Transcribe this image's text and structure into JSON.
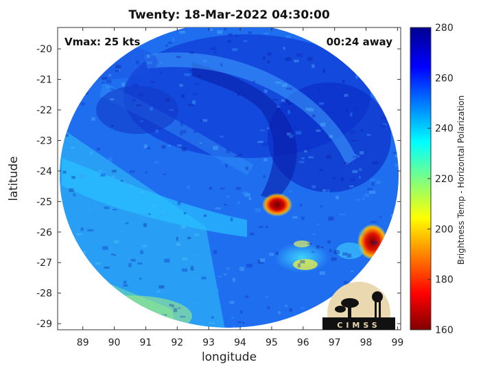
{
  "title": "Twenty: 18-Mar-2022 04:30:00",
  "vmax_label": "Vmax: 25 kts",
  "time_offset_label": "00:24 away",
  "xlabel": "longitude",
  "ylabel": "latitude",
  "colorbar_label": "Brightness Temp - Horizontal Polarization",
  "logo_text": "CIMSS",
  "chart_data": {
    "type": "heatmap",
    "x_ticks": [
      "89",
      "90",
      "91",
      "92",
      "93",
      "94",
      "95",
      "96",
      "97",
      "98",
      "99"
    ],
    "y_ticks": [
      "-20",
      "-21",
      "-22",
      "-23",
      "-24",
      "-25",
      "-26",
      "-27",
      "-28",
      "-29"
    ],
    "xlim": [
      88.2,
      99.1
    ],
    "ylim": [
      -29.2,
      -19.3
    ],
    "colorbar_ticks": [
      "280",
      "260",
      "240",
      "220",
      "200",
      "180",
      "160"
    ],
    "colorbar_range": [
      160,
      280
    ],
    "colormap": "jet",
    "features": [
      {
        "name": "cold core",
        "lon": 95.2,
        "lat": -25.0,
        "value": 165
      },
      {
        "name": "cold cell",
        "lon": 98.3,
        "lat": -26.3,
        "value": 175
      },
      {
        "name": "band",
        "lon": 95.8,
        "lat": -27.0,
        "value": 215
      }
    ]
  }
}
